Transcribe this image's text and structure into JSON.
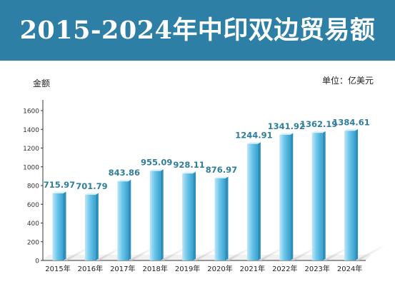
{
  "banner": {
    "title": "2015-2024年中印双边贸易额"
  },
  "chart_data": {
    "type": "bar",
    "title": "2015-2024年中印双边贸易额",
    "ylabel": "金额",
    "unit": "单位：亿美元",
    "categories": [
      "2015年",
      "2016年",
      "2017年",
      "2018年",
      "2019年",
      "2020年",
      "2021年",
      "2022年",
      "2023年",
      "2024年"
    ],
    "values": [
      715.97,
      701.79,
      843.86,
      955.09,
      928.11,
      876.97,
      1244.91,
      1341.92,
      1362.19,
      1384.61
    ],
    "value_labels": [
      "715.97",
      "701.79",
      "843.86",
      "955.09",
      "928.11",
      "876.97",
      "1244.91",
      "1341.92",
      "1362.19",
      "1384.61"
    ],
    "ylim": [
      0,
      1600
    ],
    "yticks": [
      0,
      200,
      400,
      600,
      800,
      1000,
      1200,
      1400,
      1600
    ],
    "grid": false,
    "colors": {
      "bar_light": "#bfe6f7",
      "bar_mid": "#6cc6ea",
      "bar_dark": "#3aa2cf",
      "label": "#2f7e9b"
    }
  }
}
